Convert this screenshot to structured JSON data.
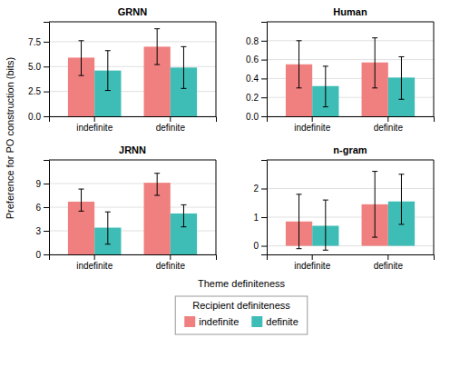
{
  "chart_data": [
    {
      "type": "bar",
      "title": "GRNN",
      "categories": [
        "indefinite",
        "definite"
      ],
      "series": [
        {
          "name": "indefinite",
          "color": "#F08080",
          "values": [
            5.9,
            7.0
          ],
          "lower": [
            4.1,
            5.2
          ],
          "upper": [
            7.6,
            8.8
          ]
        },
        {
          "name": "definite",
          "color": "#3DBDB5",
          "values": [
            4.6,
            4.9
          ],
          "lower": [
            2.6,
            2.8
          ],
          "upper": [
            6.6,
            7.0
          ]
        }
      ],
      "ylim": [
        0,
        9.5
      ],
      "yticks": [
        {
          "value": 0,
          "label": "0.0"
        },
        2.5,
        {
          "value": 5,
          "label": "5.0"
        },
        7.5
      ],
      "grid": true,
      "xlabel": "Theme definiteness",
      "ylabel": "Preference for PO construction (bits)",
      "legend_title": "Recipient definiteness",
      "legend": "bottom"
    },
    {
      "type": "bar",
      "title": "Human",
      "categories": [
        "indefinite",
        "definite"
      ],
      "series": [
        {
          "name": "indefinite",
          "color": "#F08080",
          "values": [
            0.55,
            0.57
          ],
          "lower": [
            0.3,
            0.3
          ],
          "upper": [
            0.8,
            0.83
          ]
        },
        {
          "name": "definite",
          "color": "#3DBDB5",
          "values": [
            0.32,
            0.41
          ],
          "lower": [
            0.1,
            0.18
          ],
          "upper": [
            0.53,
            0.63
          ]
        }
      ],
      "ylim": [
        0,
        1.0
      ],
      "yticks": [
        {
          "value": 0,
          "label": "0.0"
        },
        0.2,
        0.4,
        0.6,
        0.8
      ],
      "grid": true
    },
    {
      "type": "bar",
      "title": "JRNN",
      "categories": [
        "indefinite",
        "definite"
      ],
      "series": [
        {
          "name": "indefinite",
          "color": "#F08080",
          "values": [
            6.7,
            9.1
          ],
          "lower": [
            5.5,
            7.5
          ],
          "upper": [
            8.3,
            10.3
          ]
        },
        {
          "name": "definite",
          "color": "#3DBDB5",
          "values": [
            3.4,
            5.2
          ],
          "lower": [
            1.3,
            3.5
          ],
          "upper": [
            5.4,
            6.3
          ]
        }
      ],
      "ylim": [
        0,
        12.0
      ],
      "yticks": [
        0,
        3,
        6,
        9
      ],
      "grid": true
    },
    {
      "type": "bar",
      "title": "n-gram",
      "categories": [
        "indefinite",
        "definite"
      ],
      "series": [
        {
          "name": "indefinite",
          "color": "#F08080",
          "values": [
            0.85,
            1.45
          ],
          "lower": [
            -0.1,
            0.3
          ],
          "upper": [
            1.8,
            2.6
          ]
        },
        {
          "name": "definite",
          "color": "#3DBDB5",
          "values": [
            0.7,
            1.55
          ],
          "lower": [
            -0.15,
            0.75
          ],
          "upper": [
            1.6,
            2.5
          ]
        }
      ],
      "ylim": [
        -0.3,
        3.0
      ],
      "yticks": [
        0,
        1,
        2
      ],
      "grid": true
    }
  ]
}
